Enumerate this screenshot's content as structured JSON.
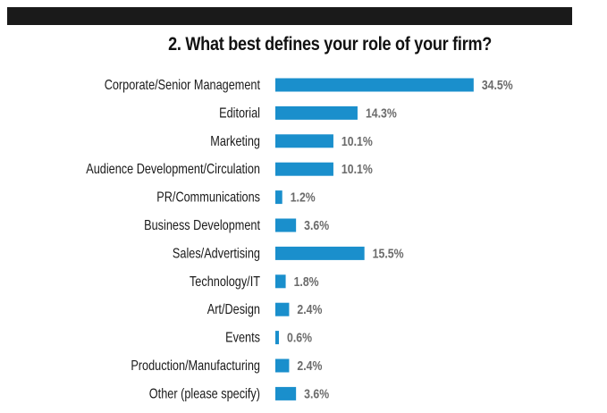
{
  "colors": {
    "bar": "#1a8fcc",
    "top_band": "#1a1a1a",
    "value_text": "#6b6b6b"
  },
  "chart_data": {
    "type": "bar",
    "orientation": "horizontal",
    "title": "2. What best defines your role of your firm?",
    "categories": [
      "Corporate/Senior Management",
      "Editorial",
      "Marketing",
      "Audience Development/Circulation",
      "PR/Communications",
      "Business Development",
      "Sales/Advertising",
      "Technology/IT",
      "Art/Design",
      "Events",
      "Production/Manufacturing",
      "Other (please specify)"
    ],
    "values": [
      34.5,
      14.3,
      10.1,
      10.1,
      1.2,
      3.6,
      15.5,
      1.8,
      2.4,
      0.6,
      2.4,
      3.6
    ],
    "data_labels": [
      "34.5%",
      "14.3%",
      "10.1%",
      "10.1%",
      "1.2%",
      "3.6%",
      "15.5%",
      "1.8%",
      "2.4%",
      "0.6%",
      "2.4%",
      "3.6%"
    ],
    "unit": "%",
    "grid": false,
    "legend": "none"
  }
}
